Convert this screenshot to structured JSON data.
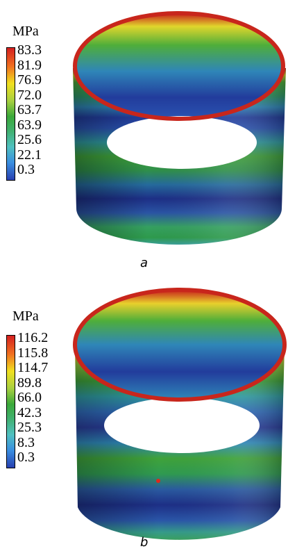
{
  "panels": [
    {
      "id": "a",
      "caption": "a",
      "unit": "MPa",
      "legend": [
        "83.3",
        "81.9",
        "76.9",
        "72.0",
        "63.7",
        "63.9",
        "25.6",
        "22.1",
        "0.3"
      ],
      "legend_colors": [
        "#d42020",
        "#f07020",
        "#f0e020",
        "#a8d040",
        "#3aa83a",
        "#40b070",
        "#50c0c0",
        "#3a8ee0",
        "#2840b0"
      ]
    },
    {
      "id": "b",
      "caption": "b",
      "unit": "MPa",
      "legend": [
        "116.2",
        "115.8",
        "114.7",
        "89.8",
        "66.0",
        "42.3",
        "25.3",
        "8.3",
        "0.3"
      ],
      "legend_colors": [
        "#d42020",
        "#f07020",
        "#f0e020",
        "#a8d040",
        "#3aa83a",
        "#40b070",
        "#50c0c0",
        "#3a8ee0",
        "#2840b0"
      ]
    }
  ],
  "colors": {
    "red": "#cc2a1e",
    "orange": "#e8821e",
    "yellow": "#d8d830",
    "green": "#3c9a3c",
    "teal": "#2aa0a0",
    "blue": "#2a4aa8",
    "navy": "#1a2a78"
  }
}
